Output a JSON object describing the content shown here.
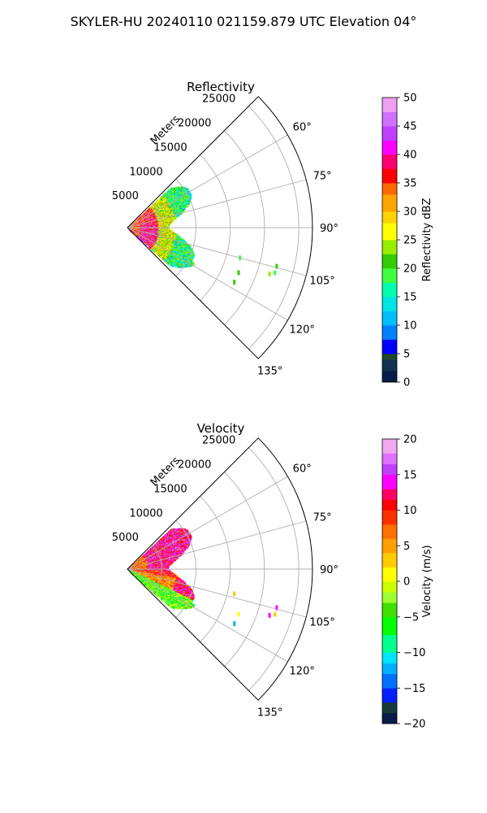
{
  "figure_title": "SKYLER-HU  20240110  021159.879 UTC Elevation 04°",
  "chart_data": [
    {
      "type": "polar-sector",
      "title": "Reflectivity",
      "range_label": "Meters",
      "theta_range_deg": [
        45,
        135
      ],
      "theta_ticks": [
        60,
        75,
        90,
        105,
        120,
        135
      ],
      "theta_tick_labels": [
        "60°",
        "75°",
        "90°",
        "105°",
        "120°",
        "135°"
      ],
      "r_max": 27000,
      "r_ticks": [
        5000,
        10000,
        15000,
        20000,
        25000
      ],
      "r_tick_labels": [
        "5000",
        "10000",
        "15000",
        "20000",
        "25000"
      ],
      "grid": true,
      "colorbar": {
        "label": "Reflectivity dBZ",
        "range": [
          0,
          50
        ],
        "ticks": [
          0,
          5,
          10,
          15,
          20,
          25,
          30,
          35,
          40,
          45,
          50
        ],
        "tick_labels": [
          "0",
          "5",
          "10",
          "15",
          "20",
          "25",
          "30",
          "35",
          "40",
          "45",
          "50"
        ]
      },
      "field_extent_m": 10500,
      "scattered_echoes": [
        {
          "theta": 105,
          "r": 17000,
          "value": 18
        },
        {
          "theta": 112,
          "r": 17500,
          "value": 20
        },
        {
          "theta": 117,
          "r": 17500,
          "value": 22
        },
        {
          "theta": 104.5,
          "r": 22500,
          "value": 20
        },
        {
          "theta": 107,
          "r": 22500,
          "value": 18
        },
        {
          "theta": 108,
          "r": 21800,
          "value": 24
        }
      ]
    },
    {
      "type": "polar-sector",
      "title": "Velocity",
      "range_label": "Meters",
      "theta_range_deg": [
        45,
        135
      ],
      "theta_ticks": [
        60,
        75,
        90,
        105,
        120,
        135
      ],
      "theta_tick_labels": [
        "60°",
        "75°",
        "90°",
        "105°",
        "120°",
        "135°"
      ],
      "r_max": 27000,
      "r_ticks": [
        5000,
        10000,
        15000,
        20000,
        25000
      ],
      "r_tick_labels": [
        "5000",
        "10000",
        "15000",
        "20000",
        "25000"
      ],
      "grid": true,
      "colorbar": {
        "label": "Velocity (m/s)",
        "range": [
          -20,
          20
        ],
        "ticks": [
          -20,
          -15,
          -10,
          -5,
          0,
          5,
          10,
          15,
          20
        ],
        "tick_labels": [
          "−20",
          "−15",
          "−10",
          "−5",
          "0",
          "5",
          "10",
          "15",
          "20"
        ]
      },
      "field_extent_m": 10500,
      "scattered_echoes": [
        {
          "theta": 103,
          "r": 16000,
          "value": 2
        },
        {
          "theta": 112,
          "r": 17500,
          "value": 0
        },
        {
          "theta": 117,
          "r": 17500,
          "value": -12
        },
        {
          "theta": 104.5,
          "r": 22500,
          "value": 14
        },
        {
          "theta": 107,
          "r": 22500,
          "value": 2
        },
        {
          "theta": 108,
          "r": 21800,
          "value": 14
        }
      ]
    }
  ]
}
